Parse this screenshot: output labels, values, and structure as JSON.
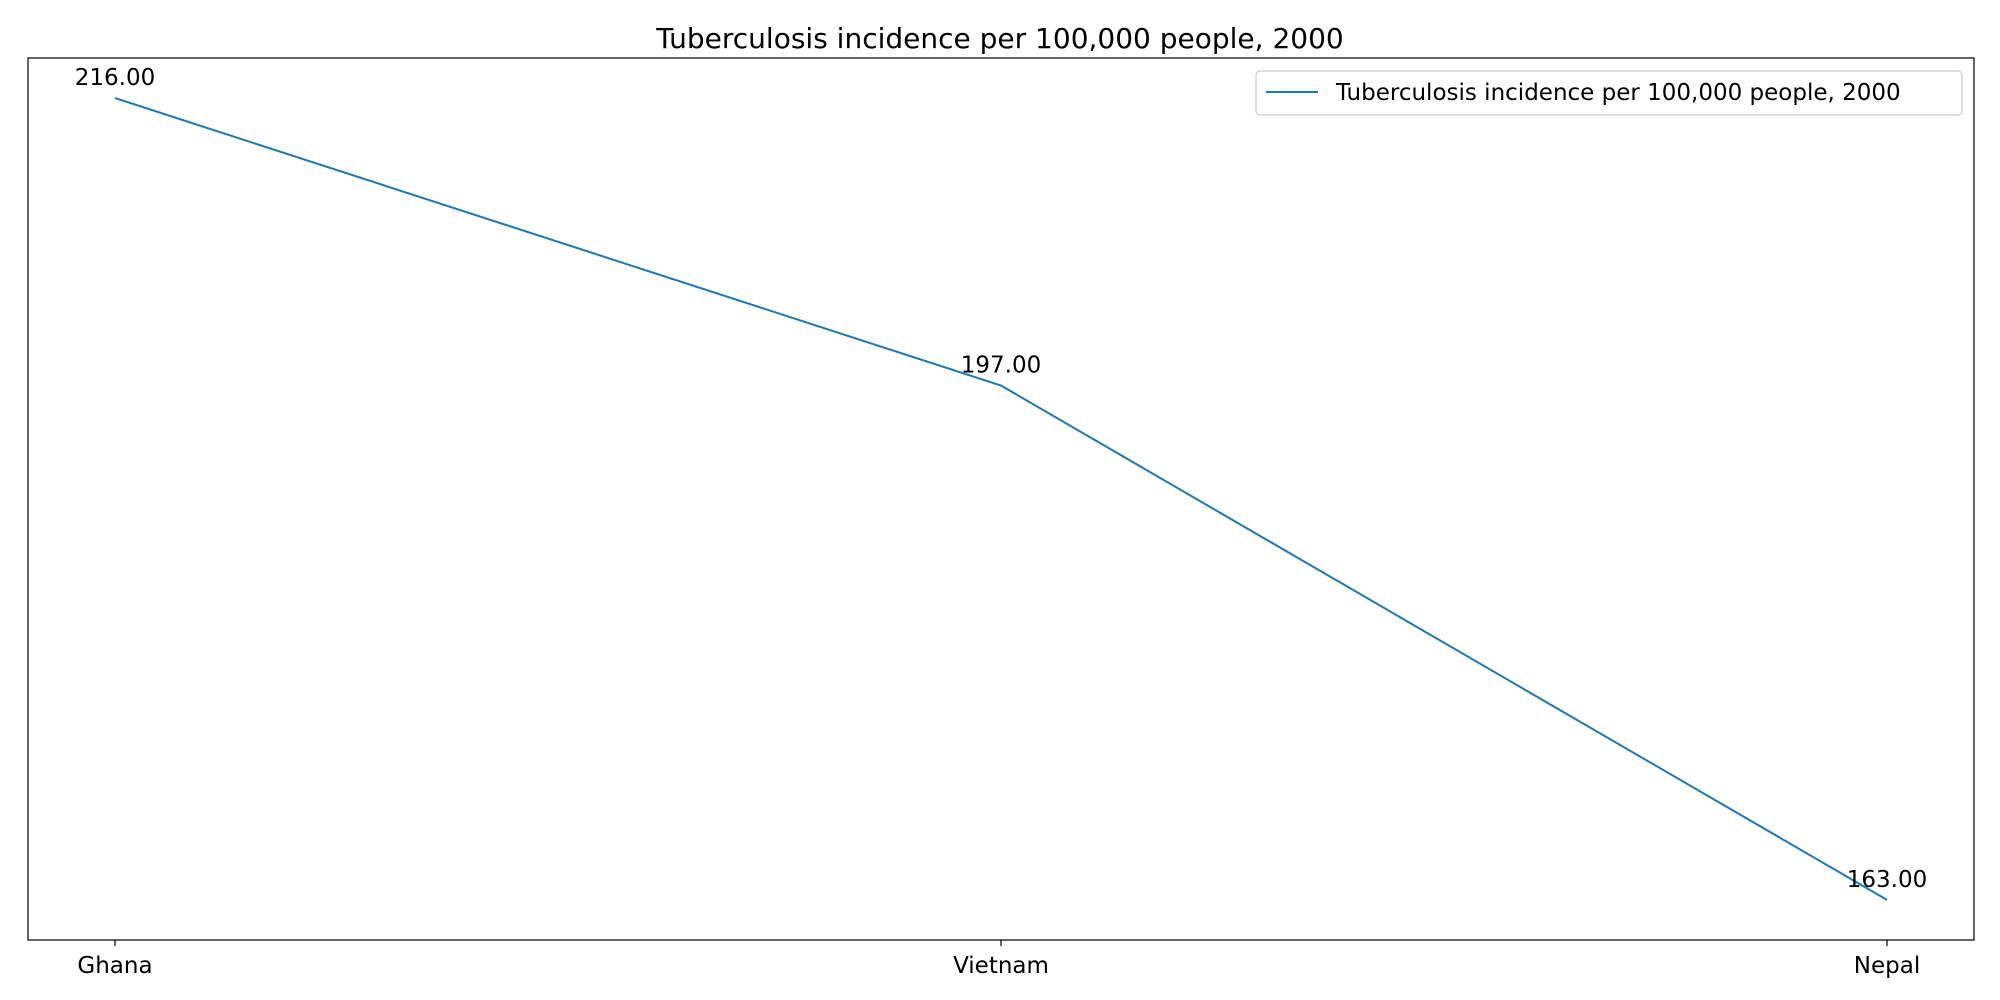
{
  "chart_data": {
    "type": "line",
    "title": "Tuberculosis incidence per 100,000 people, 2000",
    "xlabel": "",
    "ylabel": "",
    "categories": [
      "Ghana",
      "Vietnam",
      "Nepal"
    ],
    "series": [
      {
        "name": "Tuberculosis incidence per 100,000 people, 2000",
        "values": [
          216.0,
          197.0,
          163.0
        ],
        "labels": [
          "216.00",
          "197.00",
          "163.00"
        ],
        "color": "#1f77b4"
      }
    ],
    "ylim": [
      160.35,
      218.65
    ],
    "y_ticks_visible": false,
    "grid": false,
    "legend_position": "top-right"
  }
}
